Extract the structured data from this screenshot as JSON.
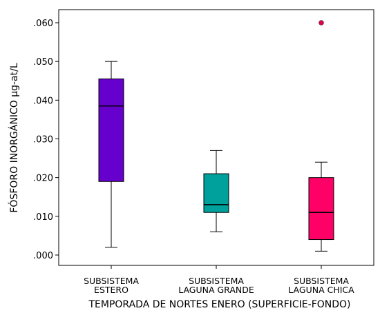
{
  "chart_data": {
    "type": "boxplot",
    "xlabel": "TEMPORADA DE NORTES ENERO (SUPERFICIE-FONDO)",
    "ylabel": "FÓSFORO INORGÁNICO µg-at/L",
    "ylim": [
      -0.002,
      0.066
    ],
    "yticks": [
      ".000",
      ".010",
      ".020",
      ".030",
      ".040",
      ".050",
      ".060"
    ],
    "ytick_values": [
      0.0,
      0.01,
      0.02,
      0.03,
      0.04,
      0.05,
      0.06
    ],
    "grid": false,
    "categories": [
      [
        "SUBSISTEMA",
        "ESTERO"
      ],
      [
        "SUBSISTEMA",
        "LAGUNA GRANDE"
      ],
      [
        "SUBSISTEMA",
        "LAGUNA CHICA"
      ]
    ],
    "boxes": [
      {
        "min": 0.002,
        "q1": 0.019,
        "median": 0.0385,
        "q3": 0.0455,
        "max": 0.05,
        "outliers": []
      },
      {
        "min": 0.006,
        "q1": 0.011,
        "median": 0.013,
        "q3": 0.021,
        "max": 0.027,
        "outliers": []
      },
      {
        "min": 0.001,
        "q1": 0.004,
        "median": 0.011,
        "q3": 0.02,
        "max": 0.024,
        "outliers": [
          0.06
        ]
      }
    ],
    "colors": [
      "#6600cc",
      "#00a19c",
      "#ff0066"
    ],
    "outlier_color": "#e3004f"
  }
}
